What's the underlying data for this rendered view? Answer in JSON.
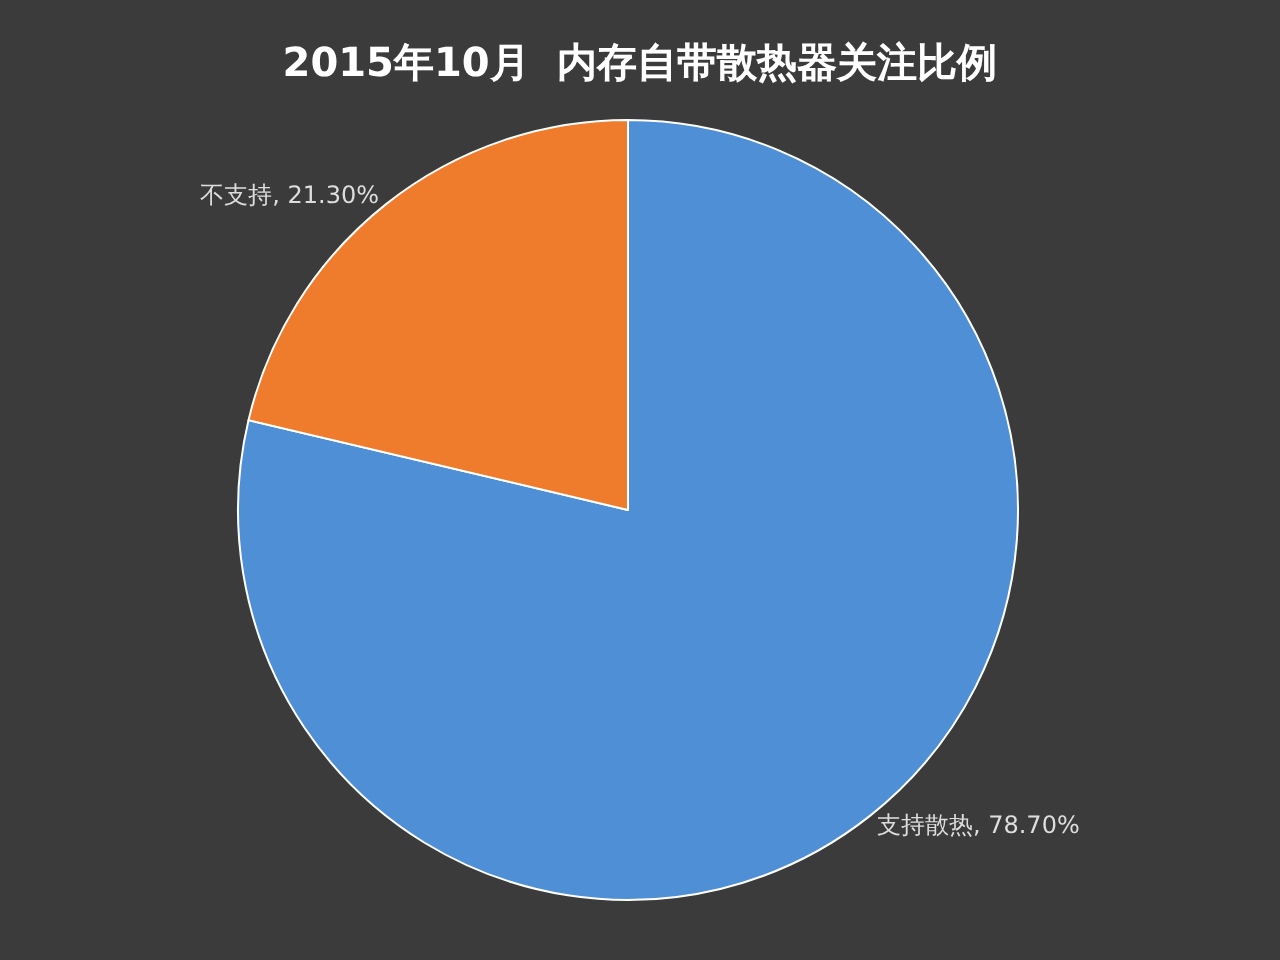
{
  "chart_data": {
    "type": "pie",
    "title": "2015年10月  内存自带散热器关注比例",
    "categories": [
      "支持散热",
      "不支持"
    ],
    "values": [
      78.7,
      21.3
    ],
    "value_labels": [
      "78.70%",
      "21.30%"
    ],
    "colors": [
      "#4f8fd6",
      "#ef7b2c"
    ],
    "legend": false
  }
}
